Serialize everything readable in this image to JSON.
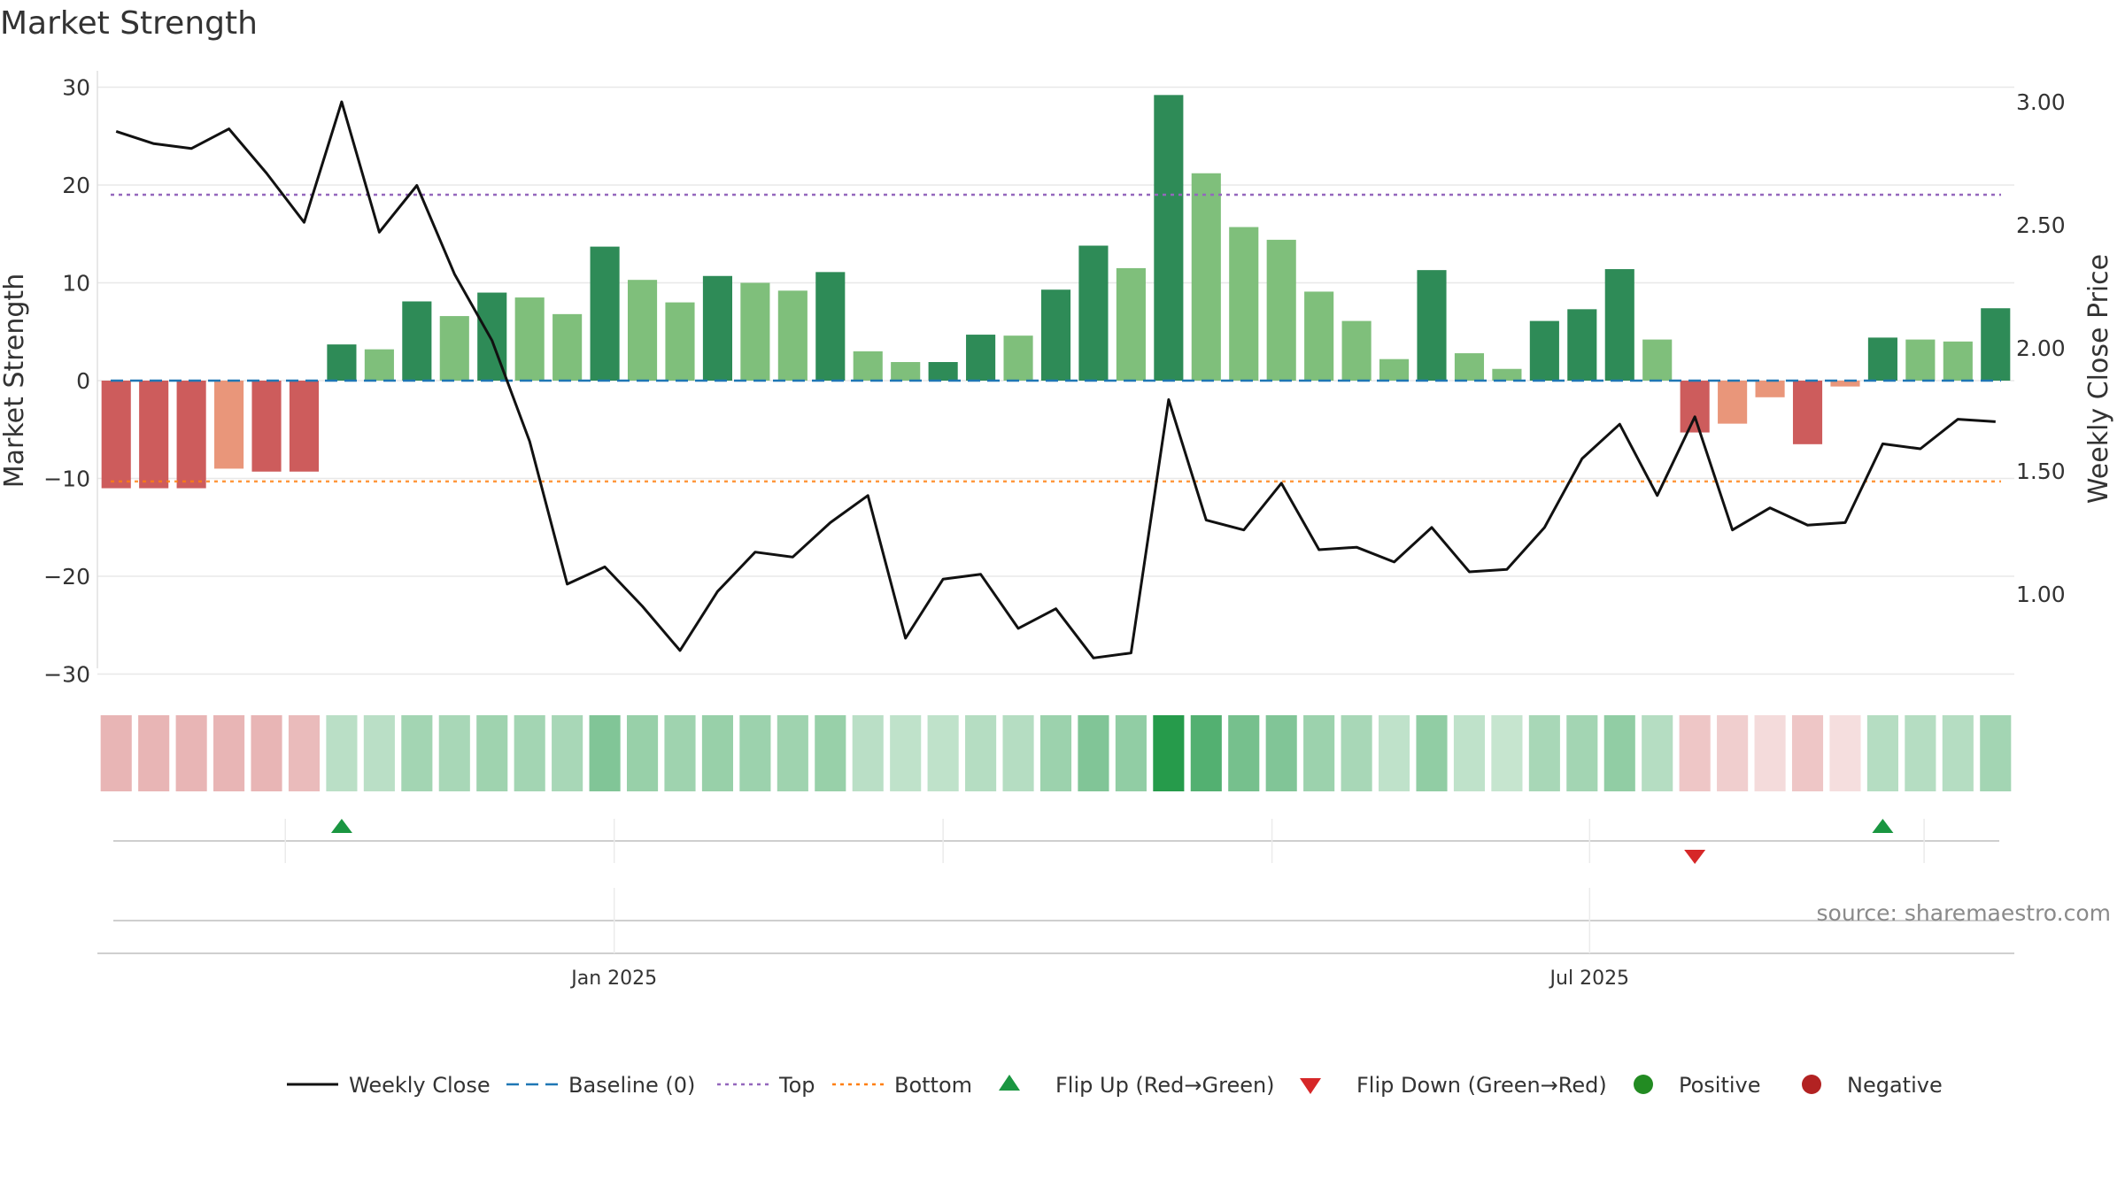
{
  "chart_data": {
    "type": "bar",
    "title": "Market Strength",
    "ylabel": "Market Strength",
    "y2label": "Weekly Close Price",
    "ylim": [
      -33,
      30.5
    ],
    "y2lim": [
      0.63,
      3.06
    ],
    "yticks": [
      30,
      20,
      10,
      0,
      -10,
      -20,
      -30
    ],
    "ytick_labels": [
      "30",
      "20",
      "10",
      "0",
      "−10",
      "−20",
      "−30"
    ],
    "y2ticks": [
      3.0,
      2.5,
      2.0,
      1.5,
      1.0
    ],
    "y2tick_labels": [
      "3.00",
      "2.50",
      "2.00",
      "1.50",
      "1.00"
    ],
    "x_ticks": [
      {
        "label": "Jan 2025",
        "index": 13.75
      },
      {
        "label": "Jul 2025",
        "index": 39.7
      }
    ],
    "top_level": 19,
    "bottom_level": -10.3,
    "baseline": 0,
    "series": [
      {
        "name": "Market Strength",
        "values": [
          -11,
          -11,
          -11,
          -9,
          -9.3,
          -9.3,
          3.7,
          3.2,
          8.1,
          6.6,
          9,
          8.5,
          6.8,
          13.7,
          10.3,
          8,
          10.7,
          10,
          9.2,
          11.1,
          3,
          1.9,
          1.9,
          4.7,
          4.6,
          9.3,
          13.8,
          11.5,
          29.2,
          21.2,
          15.7,
          14.4,
          9.1,
          6.1,
          2.2,
          11.3,
          2.8,
          1.2,
          6.1,
          7.3,
          11.4,
          4.2,
          -5.3,
          -4.4,
          -1.7,
          -6.5,
          -0.6,
          4.4,
          4.2,
          4.0,
          7.4
        ],
        "colors": [
          "#cd5c5c",
          "#cd5c5c",
          "#cd5c5c",
          "#e9967a",
          "#cd5c5c",
          "#cd5c5c",
          "#2e8b57",
          "#7fbf7b",
          "#2e8b57",
          "#7fbf7b",
          "#2e8b57",
          "#7fbf7b",
          "#7fbf7b",
          "#2e8b57",
          "#7fbf7b",
          "#7fbf7b",
          "#2e8b57",
          "#7fbf7b",
          "#7fbf7b",
          "#2e8b57",
          "#7fbf7b",
          "#7fbf7b",
          "#2e8b57",
          "#2e8b57",
          "#7fbf7b",
          "#2e8b57",
          "#2e8b57",
          "#7fbf7b",
          "#2e8b57",
          "#7fbf7b",
          "#7fbf7b",
          "#7fbf7b",
          "#7fbf7b",
          "#7fbf7b",
          "#7fbf7b",
          "#2e8b57",
          "#7fbf7b",
          "#7fbf7b",
          "#2e8b57",
          "#2e8b57",
          "#2e8b57",
          "#7fbf7b",
          "#cd5c5c",
          "#e9967a",
          "#e9967a",
          "#cd5c5c",
          "#e9967a",
          "#2e8b57",
          "#7fbf7b",
          "#7fbf7b",
          "#2e8b57"
        ]
      },
      {
        "name": "Weekly Close",
        "values": [
          2.88,
          2.83,
          2.81,
          2.89,
          2.71,
          2.51,
          3.0,
          2.47,
          2.66,
          2.3,
          2.03,
          1.62,
          1.04,
          1.11,
          0.95,
          0.77,
          1.01,
          1.17,
          1.15,
          1.29,
          1.4,
          0.82,
          1.06,
          1.08,
          0.86,
          0.94,
          0.74,
          0.76,
          1.79,
          1.3,
          1.26,
          1.45,
          1.18,
          1.19,
          1.13,
          1.27,
          1.09,
          1.1,
          1.27,
          1.55,
          1.69,
          1.4,
          1.72,
          1.26,
          1.35,
          1.28,
          1.29,
          1.61,
          1.59,
          1.71,
          1.7
        ]
      }
    ],
    "heat_strip_opacity": [
      0.45,
      0.45,
      0.45,
      0.45,
      0.45,
      0.42,
      0.3,
      0.3,
      0.4,
      0.38,
      0.42,
      0.4,
      0.38,
      0.55,
      0.45,
      0.42,
      0.45,
      0.43,
      0.42,
      0.45,
      0.3,
      0.28,
      0.28,
      0.32,
      0.32,
      0.43,
      0.55,
      0.48,
      0.95,
      0.75,
      0.6,
      0.55,
      0.43,
      0.38,
      0.28,
      0.48,
      0.28,
      0.25,
      0.38,
      0.4,
      0.48,
      0.32,
      0.35,
      0.3,
      0.22,
      0.35,
      0.2,
      0.32,
      0.32,
      0.32,
      0.4
    ],
    "flip_up_indices": [
      6,
      47
    ],
    "flip_down_indices": [
      42
    ],
    "legend": [
      {
        "label": "Weekly Close",
        "marker": "line",
        "color": "#111111"
      },
      {
        "label": "Baseline (0)",
        "marker": "dashed",
        "color": "#1f77b4"
      },
      {
        "label": "Top",
        "marker": "dotted",
        "color": "#9467bd"
      },
      {
        "label": "Bottom",
        "marker": "dotted",
        "color": "#ff7f0e"
      },
      {
        "label": "Flip Up (Red→Green)",
        "marker": "triangle-up",
        "color": "#1a9641"
      },
      {
        "label": "Flip Down (Green→Red)",
        "marker": "triangle-down",
        "color": "#d62728"
      },
      {
        "label": "Positive",
        "marker": "circle",
        "color": "#228b22"
      },
      {
        "label": "Negative",
        "marker": "circle",
        "color": "#b22222"
      }
    ],
    "legend_position": "bottom-center",
    "grid": true,
    "source": "source: sharemaestro.com"
  }
}
